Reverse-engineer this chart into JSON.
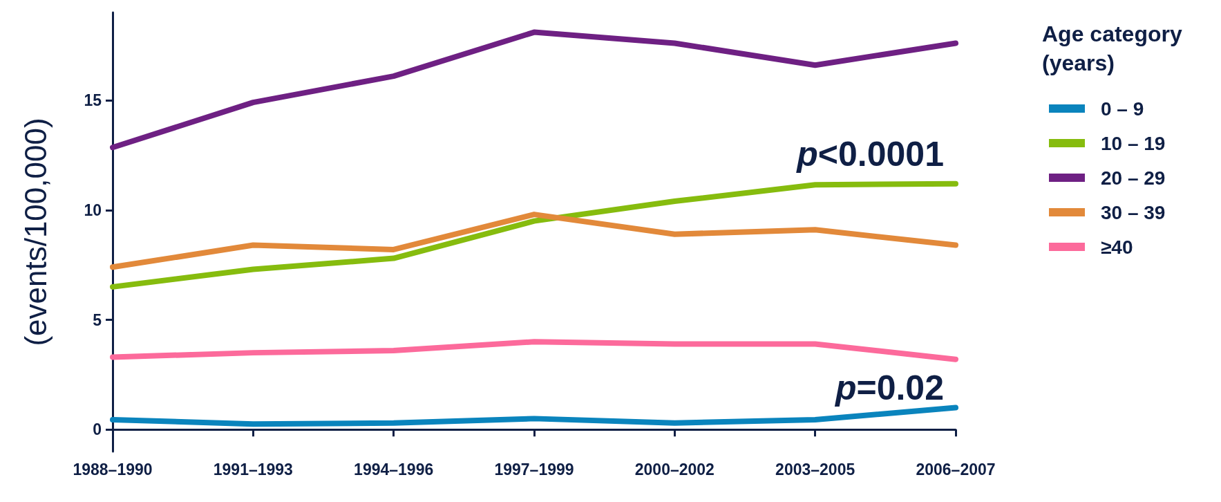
{
  "chart_data": {
    "type": "line",
    "ylabel": "(events/100,000)",
    "legend_title": "Age category\n(years)",
    "categories": [
      "1988–1990",
      "1991–1993",
      "1994–1996",
      "1997–1999",
      "2000–2002",
      "2003–2005",
      "2006–2007"
    ],
    "series": [
      {
        "name": "0 – 9",
        "color": "#0a84bd",
        "values": [
          0.45,
          0.25,
          0.3,
          0.5,
          0.3,
          0.45,
          1.0
        ]
      },
      {
        "name": "10 – 19",
        "color": "#86bc0e",
        "values": [
          6.5,
          7.3,
          7.8,
          9.5,
          10.4,
          11.15,
          11.2
        ]
      },
      {
        "name": "20 – 29",
        "color": "#6e2083",
        "values": [
          12.85,
          14.9,
          16.1,
          18.1,
          17.6,
          16.6,
          17.6
        ]
      },
      {
        "name": "30 – 39",
        "color": "#e2893a",
        "values": [
          7.4,
          8.4,
          8.2,
          9.8,
          8.9,
          9.1,
          8.4
        ]
      },
      {
        "name": "≥40",
        "color": "#fc6a9b",
        "values": [
          3.3,
          3.5,
          3.6,
          4.0,
          3.9,
          3.9,
          3.2
        ]
      }
    ],
    "annotations": [
      "p<0.0001",
      "p=0.02"
    ],
    "ylim": [
      -1,
      19
    ],
    "yticks": [
      0,
      5,
      10,
      15
    ],
    "grid": false,
    "legend": "right",
    "marker": "none",
    "line_style": "solid"
  }
}
